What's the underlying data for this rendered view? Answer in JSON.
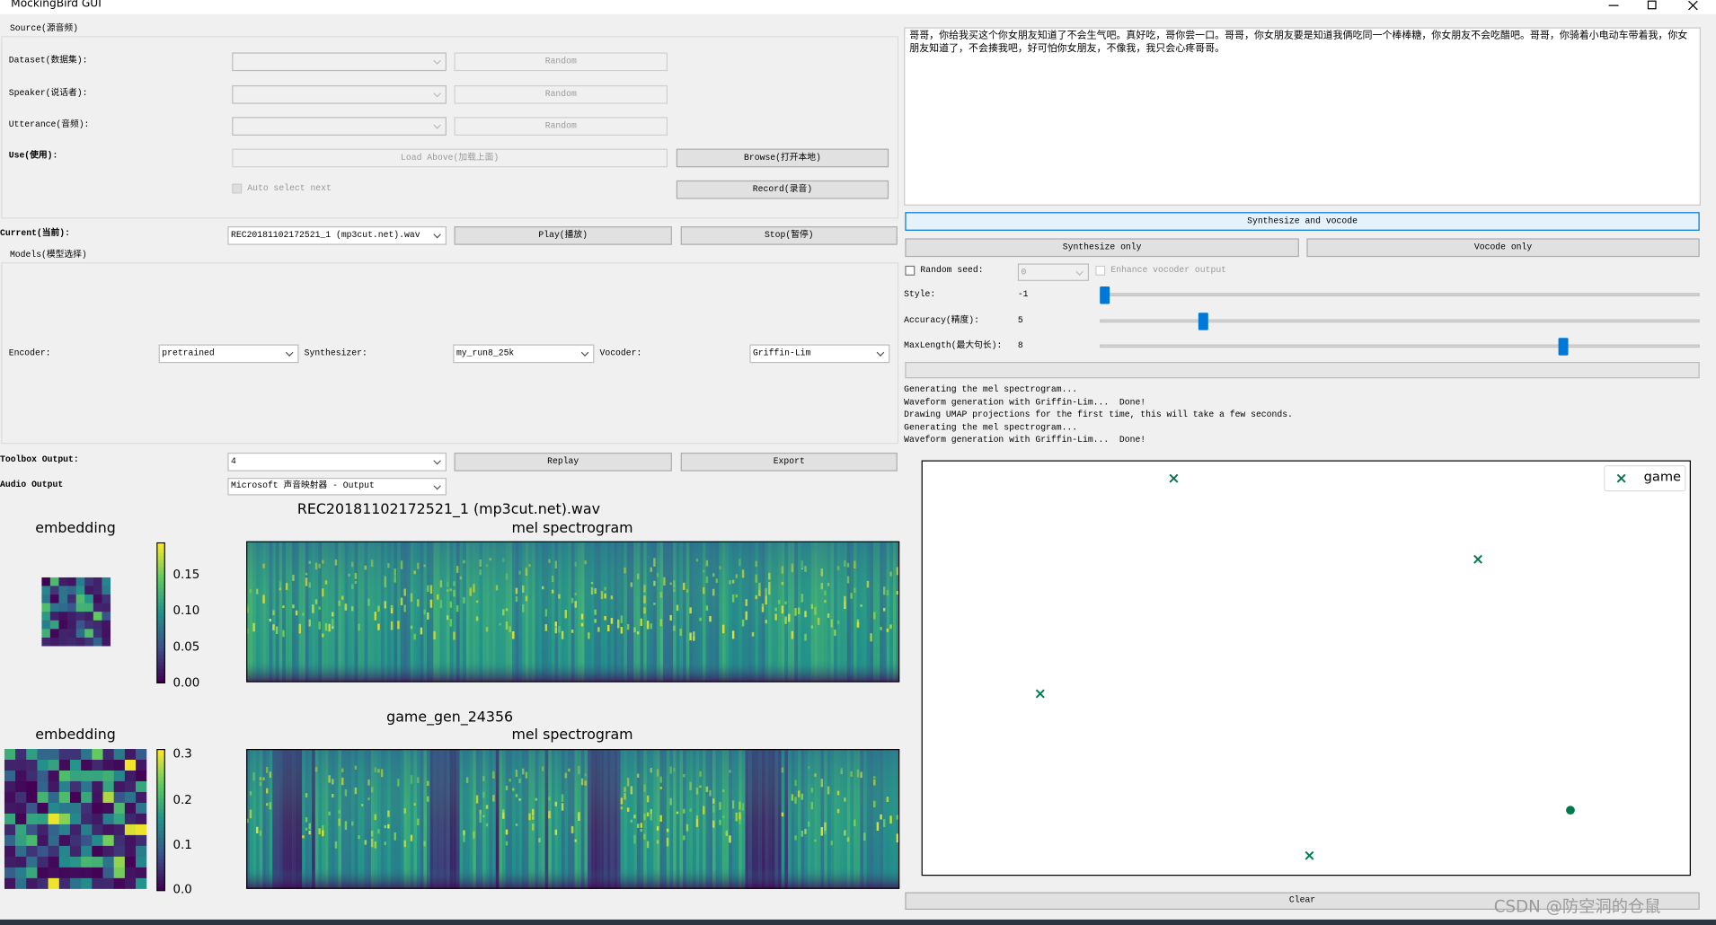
{
  "window": {
    "title": "MockingBird GUI"
  },
  "source": {
    "title": "Source(源音频)",
    "rows": [
      {
        "label": "Dataset(数据集):",
        "button": "Random"
      },
      {
        "label": "Speaker(说话者):",
        "button": "Random"
      },
      {
        "label": "Utterance(音频):",
        "button": "Random"
      }
    ],
    "use_label": "Use(使用):",
    "load_button": "Load Above(加载上面)",
    "browse_button": "Browse(打开本地)",
    "auto_select": "Auto select next",
    "record_button": "Record(录音)"
  },
  "current": {
    "label": "Current(当前):",
    "value": "REC20181102172521_1 (mp3cut.net).wav",
    "play": "Play(播放)",
    "stop": "Stop(暂停)"
  },
  "models": {
    "title": "Models(模型选择)",
    "encoder_label": "Encoder:",
    "encoder": "pretrained",
    "synthesizer_label": "Synthesizer:",
    "synthesizer": "my_run8_25k",
    "vocoder_label": "Vocoder:",
    "vocoder": "Griffin-Lim"
  },
  "toolbox_output": {
    "label": "Toolbox Output:",
    "value": "4",
    "replay": "Replay",
    "export": "Export"
  },
  "audio_output": {
    "label": "Audio Output",
    "value": "Microsoft 声音映射器 - Output"
  },
  "plots": [
    {
      "embedding_title": "embedding",
      "colorbar_ticks": [
        "0.15",
        "0.10",
        "0.05",
        "0.00"
      ],
      "title": "REC20181102172521_1 (mp3cut.net).wav",
      "subtitle": "mel spectrogram"
    },
    {
      "embedding_title": "embedding",
      "colorbar_ticks": [
        "0.3",
        "0.2",
        "0.1",
        "0.0"
      ],
      "title": "game_gen_24356",
      "subtitle": "mel spectrogram"
    }
  ],
  "text_input": "哥哥，你给我买这个你女朋友知道了不会生气吧。真好吃，哥你尝一口。哥哥，你女朋友要是知道我俩吃同一个棒棒糖，你女朋友不会吃醋吧。哥哥，你骑着小电动车带着我，你女朋友知道了，不会揍我吧，好可怕你女朋友，不像我，我只会心疼哥哥。",
  "buttons": {
    "synth_vocode": "Synthesize and vocode",
    "synth_only": "Synthesize only",
    "vocode_only": "Vocode only",
    "clear": "Clear"
  },
  "options": {
    "random_seed": "Random seed:",
    "seed_value": "0",
    "enhance": "Enhance vocoder output"
  },
  "sliders": [
    {
      "label": "Style:",
      "value": "-1"
    },
    {
      "label": "Accuracy(精度):",
      "value": "5"
    },
    {
      "label": "MaxLength(最大句长):",
      "value": "8"
    }
  ],
  "log": [
    "Generating the mel spectrogram...",
    "Waveform generation with Griffin-Lim...  Done!",
    "Drawing UMAP projections for the first time, this will take a few seconds.",
    "Generating the mel spectrogram...",
    "Waveform generation with Griffin-Lim...  Done!"
  ],
  "umap": {
    "legend": "game"
  },
  "watermark": "CSDN @防空洞的仓鼠"
}
